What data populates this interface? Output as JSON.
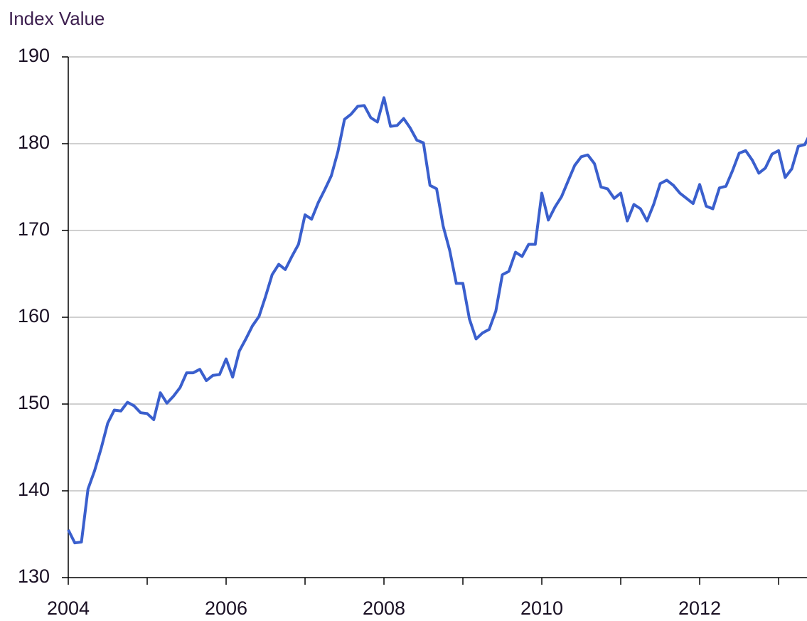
{
  "chart_data": {
    "type": "line",
    "ylabel": "Index Value",
    "x": [
      2004,
      2004.083,
      2004.167,
      2004.25,
      2004.333,
      2004.417,
      2004.5,
      2004.583,
      2004.667,
      2004.75,
      2004.833,
      2004.917,
      2005,
      2005.083,
      2005.167,
      2005.25,
      2005.333,
      2005.417,
      2005.5,
      2005.583,
      2005.667,
      2005.75,
      2005.833,
      2005.917,
      2006,
      2006.083,
      2006.167,
      2006.25,
      2006.333,
      2006.417,
      2006.5,
      2006.583,
      2006.667,
      2006.75,
      2006.833,
      2006.917,
      2007,
      2007.083,
      2007.167,
      2007.25,
      2007.333,
      2007.417,
      2007.5,
      2007.583,
      2007.667,
      2007.75,
      2007.833,
      2007.917,
      2008,
      2008.083,
      2008.167,
      2008.25,
      2008.333,
      2008.417,
      2008.5,
      2008.583,
      2008.667,
      2008.75,
      2008.833,
      2008.917,
      2009,
      2009.083,
      2009.167,
      2009.25,
      2009.333,
      2009.417,
      2009.5,
      2009.583,
      2009.667,
      2009.75,
      2009.833,
      2009.917,
      2010,
      2010.083,
      2010.167,
      2010.25,
      2010.333,
      2010.417,
      2010.5,
      2010.583,
      2010.667,
      2010.75,
      2010.833,
      2010.917,
      2011,
      2011.083,
      2011.167,
      2011.25,
      2011.333,
      2011.417,
      2011.5,
      2011.583,
      2011.667,
      2011.75,
      2011.833,
      2011.917,
      2012,
      2012.083,
      2012.167,
      2012.25,
      2012.333,
      2012.417,
      2012.5,
      2012.583,
      2012.667,
      2012.75,
      2012.833,
      2012.917,
      2013,
      2013.083,
      2013.167,
      2013.25,
      2013.333,
      2013.417
    ],
    "values": [
      135.5,
      134.0,
      134.1,
      140.2,
      142.3,
      144.9,
      147.8,
      149.3,
      149.2,
      150.2,
      149.8,
      149.0,
      148.9,
      148.2,
      151.3,
      150.1,
      150.9,
      151.9,
      153.6,
      153.6,
      154.0,
      152.7,
      153.3,
      153.4,
      155.2,
      153.1,
      156.1,
      157.5,
      159.0,
      160.1,
      162.4,
      164.9,
      166.1,
      165.5,
      167.0,
      168.4,
      171.8,
      171.3,
      173.2,
      174.7,
      176.3,
      179.1,
      182.8,
      183.4,
      184.3,
      184.4,
      183.0,
      182.5,
      185.3,
      182.0,
      182.1,
      182.9,
      181.8,
      180.4,
      180.1,
      175.2,
      174.8,
      170.5,
      167.7,
      163.9,
      163.9,
      159.8,
      157.5,
      158.2,
      158.6,
      160.7,
      164.9,
      165.3,
      167.5,
      167.0,
      168.4,
      168.4,
      174.3,
      171.2,
      172.7,
      173.9,
      175.7,
      177.5,
      178.5,
      178.7,
      177.7,
      175.0,
      174.8,
      173.7,
      174.3,
      171.1,
      173.0,
      172.5,
      171.1,
      173.0,
      175.4,
      175.8,
      175.2,
      174.3,
      173.7,
      173.1,
      175.3,
      172.8,
      172.5,
      174.9,
      175.1,
      176.9,
      178.9,
      179.2,
      178.1,
      176.6,
      177.2,
      178.8,
      179.2,
      176.1,
      177.1,
      179.7,
      179.9,
      181.5
    ],
    "color": "#3a5fcd",
    "xlim": [
      2004,
      2013.36
    ],
    "xticks": [
      2004,
      2006,
      2008,
      2010,
      2012
    ],
    "xminor_ticks": [
      2005,
      2007,
      2009,
      2011,
      2013
    ],
    "ylim": [
      130,
      190
    ],
    "yticks": [
      130,
      140,
      150,
      160,
      170,
      180,
      190
    ],
    "grid": true
  }
}
